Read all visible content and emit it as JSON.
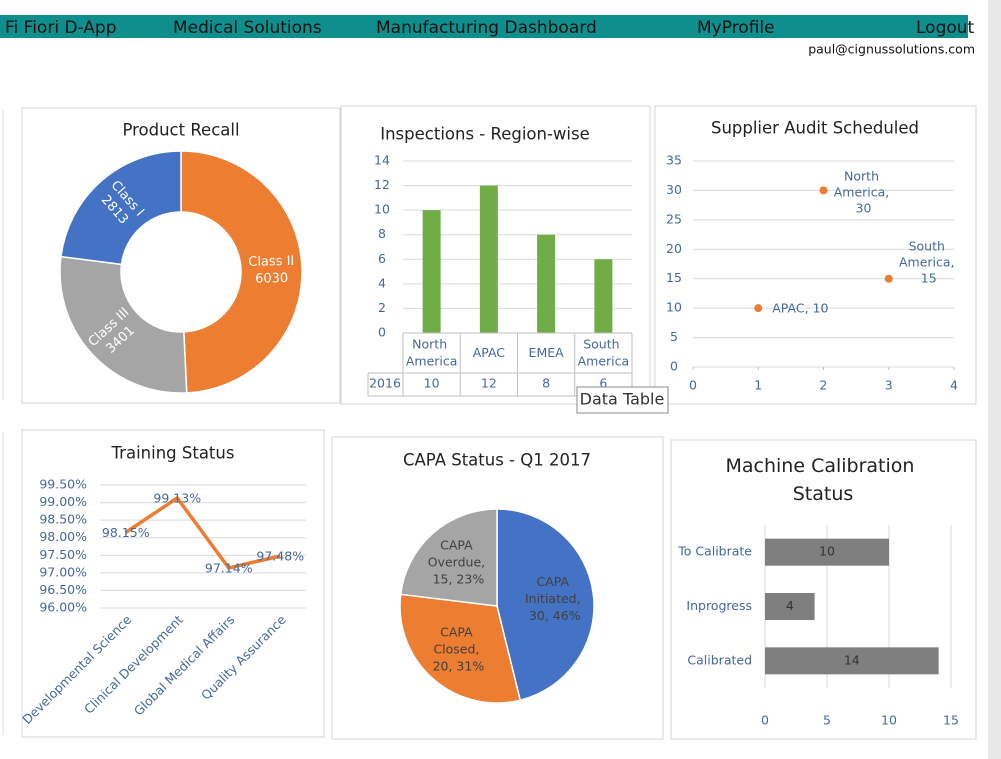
{
  "nav": [
    "Fi Fiori D-App",
    "Medical Solutions",
    "Manufacturing Dashboard",
    "MyProfile",
    "Logout"
  ],
  "user_email": "paul@cignussolutions.com",
  "tooltip": "Data Table",
  "chart_data": [
    {
      "type": "donut",
      "title": "Product Recall",
      "categories": [
        "Class II",
        "Class III",
        "Class I"
      ],
      "values": [
        6030,
        3401,
        2813
      ],
      "colors": [
        "#ed7d31",
        "#a5a5a5",
        "#4472c4"
      ]
    },
    {
      "type": "bar",
      "title": "Inspections - Region-wise",
      "categories": [
        "North America",
        "APAC",
        "EMEA",
        "South America"
      ],
      "series": [
        {
          "name": "2016",
          "color": "#70ad47",
          "values": [
            10,
            12,
            8,
            6
          ]
        }
      ],
      "ylim": [
        0,
        14
      ],
      "yticks": [
        0,
        2,
        4,
        6,
        8,
        10,
        12,
        14
      ],
      "grid": true,
      "data_table": true
    },
    {
      "type": "scatter",
      "title": "Supplier Audit Scheduled",
      "x": [
        1,
        2,
        3
      ],
      "values": [
        10,
        30,
        15
      ],
      "value_labels": [
        "APAC, 10",
        "North America, 30",
        "South America, 15"
      ],
      "color": "#ed7d31",
      "xlim": [
        0,
        4
      ],
      "xticks": [
        0,
        1,
        2,
        3,
        4
      ],
      "ylim": [
        0,
        35
      ],
      "yticks": [
        0,
        5,
        10,
        15,
        20,
        25,
        30,
        35
      ],
      "grid": true
    },
    {
      "type": "line",
      "title": "Training Status",
      "categories": [
        "Developmental Science",
        "Clinical Development",
        "Global Medical Affairs",
        "Quality Assurance"
      ],
      "values": [
        98.15,
        99.13,
        97.14,
        97.48
      ],
      "value_labels": [
        "98.15%",
        "99.13%",
        "97.14%",
        "97.48%"
      ],
      "color": "#ed7d31",
      "ylim": [
        96,
        99.5
      ],
      "yticks": [
        {
          "value": 96,
          "label": "96.00%"
        },
        {
          "value": 96.5,
          "label": "96.50%"
        },
        {
          "value": 97,
          "label": "97.00%"
        },
        {
          "value": 97.5,
          "label": "97.50%"
        },
        {
          "value": 98,
          "label": "98.00%"
        },
        {
          "value": 98.5,
          "label": "98.50%"
        },
        {
          "value": 99,
          "label": "99.00%"
        },
        {
          "value": 99.5,
          "label": "99.50%"
        }
      ],
      "grid": true
    },
    {
      "type": "pie",
      "title": "CAPA Status - Q1 2017",
      "values": [
        30,
        20,
        15
      ],
      "value_labels": [
        "CAPA Initiated, 30, 46%",
        "CAPA Closed, 20, 31%",
        "CAPA Overdue, 15, 23%"
      ],
      "colors": [
        "#4472c4",
        "#ed7d31",
        "#a5a5a5"
      ]
    },
    {
      "type": "hbar",
      "title": "Machine Calibration Status",
      "categories": [
        "Calibrated",
        "Inprogress",
        "To Calibrate"
      ],
      "values": [
        14,
        4,
        10
      ],
      "color": "#7f7f7f",
      "xlim": [
        0,
        15
      ],
      "xticks": [
        0,
        5,
        10,
        15
      ],
      "grid": true
    }
  ]
}
